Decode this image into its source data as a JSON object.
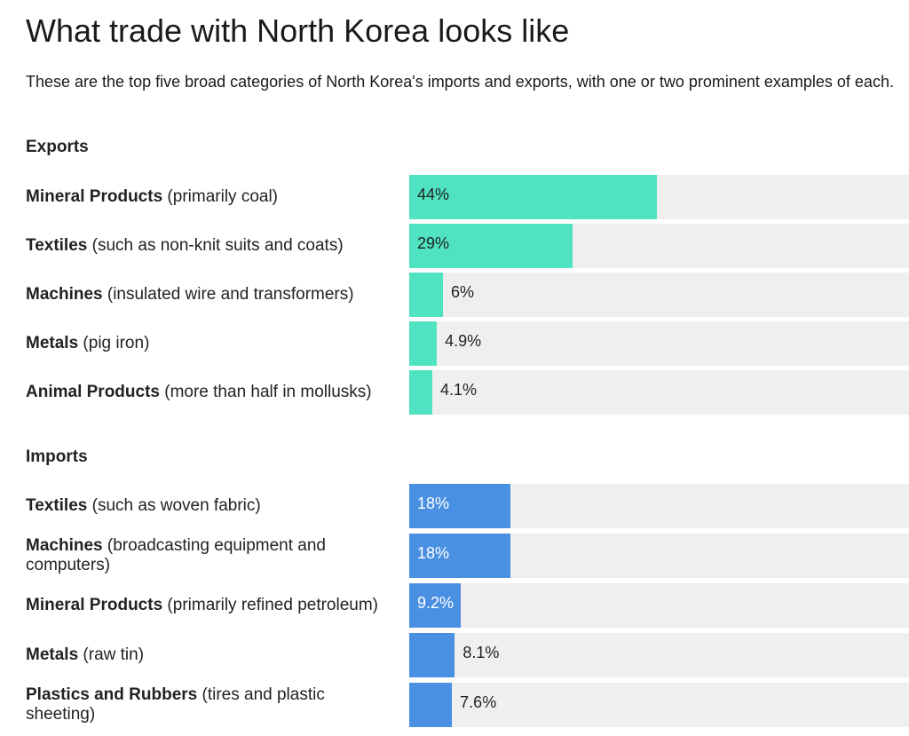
{
  "header": {
    "title": "What trade with North Korea looks like",
    "subtitle": "These are the top five broad categories of North Korea's imports and exports, with one or two prominent examples of each."
  },
  "colors": {
    "exports_bar": "#4fe3c1",
    "imports_bar": "#4a90e2",
    "track": "#efefef"
  },
  "chart_data": [
    {
      "type": "bar",
      "orientation": "horizontal",
      "section_label": "Exports",
      "categories": [
        {
          "name": "Mineral Products",
          "detail": "(primarily coal)"
        },
        {
          "name": "Textiles",
          "detail": "(such as non-knit suits and coats)"
        },
        {
          "name": "Machines",
          "detail": "(insulated wire and transformers)"
        },
        {
          "name": "Metals",
          "detail": "(pig iron)"
        },
        {
          "name": "Animal Products",
          "detail": "(more than half in mollusks)"
        }
      ],
      "values": [
        44,
        29,
        6,
        4.9,
        4.1
      ],
      "value_labels": [
        "44%",
        "29%",
        "6%",
        "4.9%",
        "4.1%"
      ],
      "xlim": [
        0,
        100
      ],
      "unit": "%"
    },
    {
      "type": "bar",
      "orientation": "horizontal",
      "section_label": "Imports",
      "categories": [
        {
          "name": "Textiles",
          "detail": "(such as woven fabric)"
        },
        {
          "name": "Machines",
          "detail": "(broadcasting equipment and computers)"
        },
        {
          "name": "Mineral Products",
          "detail": "(primarily refined petroleum)"
        },
        {
          "name": "Metals",
          "detail": "(raw tin)"
        },
        {
          "name": "Plastics and Rubbers",
          "detail": "(tires and plastic sheeting)"
        }
      ],
      "values": [
        18,
        18,
        9.2,
        8.1,
        7.6
      ],
      "value_labels": [
        "18%",
        "18%",
        "9.2%",
        "8.1%",
        "7.6%"
      ],
      "xlim": [
        0,
        100
      ],
      "unit": "%"
    }
  ]
}
